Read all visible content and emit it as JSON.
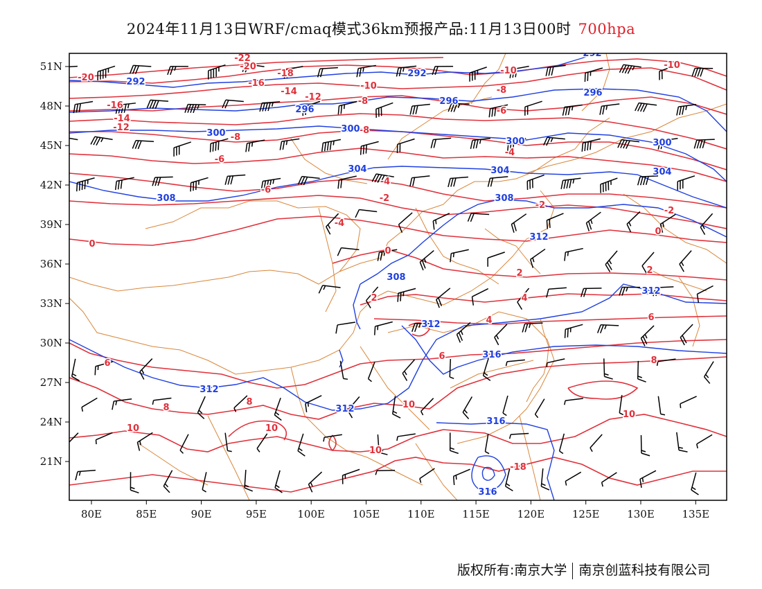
{
  "title": {
    "text": "2024年11月13日WRF/cmaq模式36km预报产品:11月13日00时",
    "level": "700hpa"
  },
  "colors": {
    "temperature": "#e0303a",
    "geopotential": "#1f3fe0",
    "boundary": "#d9863a",
    "wind": "#000000",
    "frame": "#000000"
  },
  "map": {
    "x_ticks": [
      "80E",
      "85E",
      "90E",
      "95E",
      "100E",
      "105E",
      "110E",
      "115E",
      "120E",
      "125E",
      "130E",
      "135E"
    ],
    "y_ticks": [
      "51N",
      "48N",
      "45N",
      "42N",
      "39N",
      "36N",
      "33N",
      "30N",
      "27N",
      "24N",
      "21N"
    ],
    "temperature_labels": [
      "-22",
      "-20",
      "-20",
      "-18",
      "-16",
      "-16",
      "-14",
      "-14",
      "-12",
      "-12",
      "-10",
      "-10",
      "-10",
      "-8",
      "-8",
      "-8",
      "-8",
      "-6",
      "-6",
      "-6",
      "-4",
      "-4",
      "-4",
      "-2",
      "-2",
      "-2",
      "0",
      "0",
      "0",
      "2",
      "2",
      "2",
      "4",
      "4",
      "6",
      "6",
      "6",
      "8",
      "8",
      "8",
      "10",
      "10",
      "10",
      "10",
      "10",
      "-18"
    ],
    "geopotential_labels": [
      "292",
      "292",
      "292",
      "296",
      "296",
      "296",
      "300",
      "300",
      "300",
      "300",
      "304",
      "304",
      "304",
      "308",
      "308",
      "308",
      "312",
      "312",
      "312",
      "312",
      "312",
      "316",
      "316",
      "316"
    ]
  },
  "footer": {
    "left": "版权所有:南京大学",
    "right": "南京创蓝科技有限公司"
  }
}
